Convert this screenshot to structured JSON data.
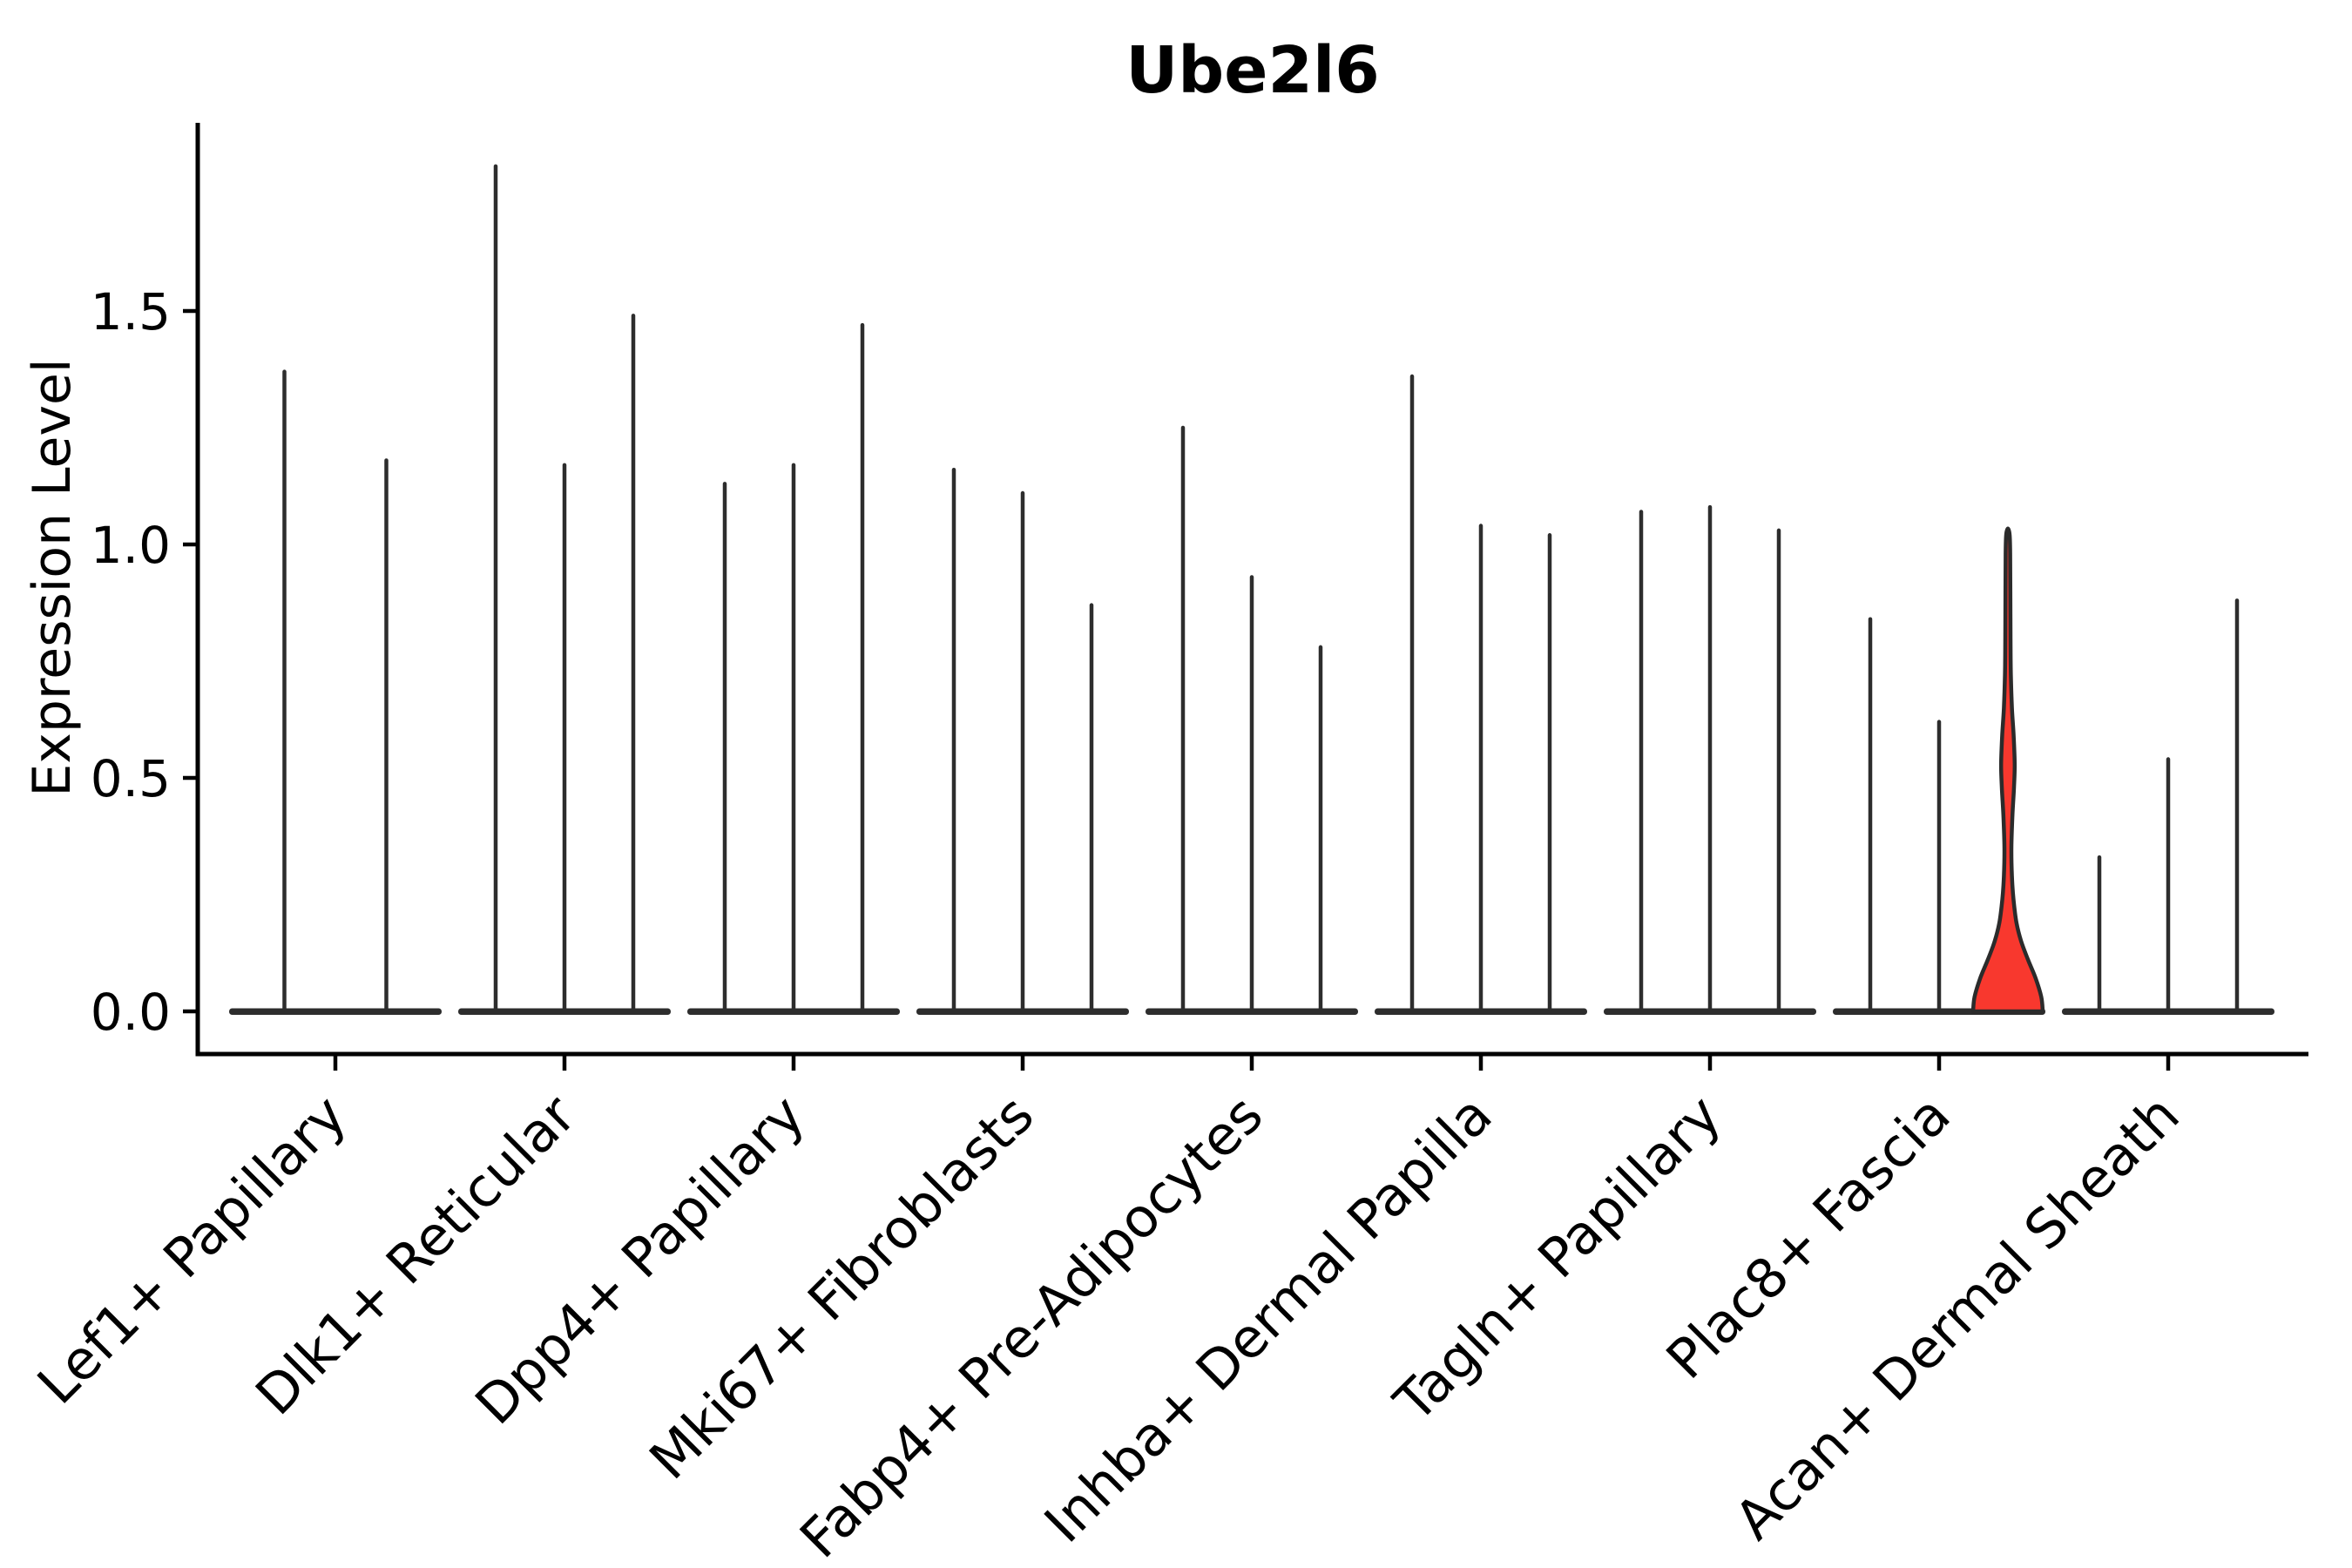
{
  "chart_data": {
    "type": "violin",
    "title": "Ube2l6",
    "ylabel": "Expression Level",
    "xlabel": "",
    "yticks": [
      0.0,
      0.5,
      1.0,
      1.5
    ],
    "ytick_labels": [
      "0.0",
      "0.5",
      "1.0",
      "1.5"
    ],
    "ylim": [
      -0.09,
      1.9
    ],
    "grid": false,
    "legend": "none",
    "x_tick_rotation_deg": 45,
    "categories": [
      "Lef1+ Papillary",
      "Dlk1+ Reticular",
      "Dpp4+ Papillary",
      "Mki67+ Fibroblasts",
      "Fabp4+ Pre-Adipocytes",
      "Inhba+ Dermal Papilla",
      "Tagln+ Papillary",
      "Plac8+ Fascia",
      "Acan+ Dermal Sheath"
    ],
    "groups": [
      {
        "label": "Lef1+ Papillary",
        "violins": [
          {
            "max": 1.37
          },
          {
            "max": 1.18
          }
        ]
      },
      {
        "label": "Dlk1+ Reticular",
        "violins": [
          {
            "max": 1.81
          },
          {
            "max": 1.17
          },
          {
            "max": 1.49
          }
        ]
      },
      {
        "label": "Dpp4+ Papillary",
        "violins": [
          {
            "max": 1.13
          },
          {
            "max": 1.17
          },
          {
            "max": 1.47
          }
        ]
      },
      {
        "label": "Mki67+ Fibroblasts",
        "violins": [
          {
            "max": 1.16
          },
          {
            "max": 1.11
          },
          {
            "max": 0.87
          }
        ]
      },
      {
        "label": "Fabp4+ Pre-Adipocytes",
        "violins": [
          {
            "max": 1.25
          },
          {
            "max": 0.93
          },
          {
            "max": 0.78
          }
        ]
      },
      {
        "label": "Inhba+ Dermal Papilla",
        "violins": [
          {
            "max": 1.36
          },
          {
            "max": 1.04
          },
          {
            "max": 1.02
          }
        ]
      },
      {
        "label": "Tagln+ Papillary",
        "violins": [
          {
            "max": 1.07
          },
          {
            "max": 1.08
          },
          {
            "max": 1.03
          }
        ]
      },
      {
        "label": "Plac8+ Fascia",
        "violins": [
          {
            "max": 0.84
          },
          {
            "max": 0.62
          },
          {
            "max": 1.03,
            "highlighted": true,
            "profile": [
              [
                0.0,
                1.0
              ],
              [
                0.03,
                0.96
              ],
              [
                0.07,
                0.8
              ],
              [
                0.11,
                0.58
              ],
              [
                0.15,
                0.38
              ],
              [
                0.19,
                0.245
              ],
              [
                0.24,
                0.16
              ],
              [
                0.29,
                0.115
              ],
              [
                0.35,
                0.1
              ],
              [
                0.42,
                0.13
              ],
              [
                0.48,
                0.175
              ],
              [
                0.53,
                0.195
              ],
              [
                0.59,
                0.165
              ],
              [
                0.65,
                0.115
              ],
              [
                0.72,
                0.085
              ],
              [
                0.8,
                0.075
              ],
              [
                0.9,
                0.07
              ],
              [
                0.98,
                0.065
              ],
              [
                1.02,
                0.05
              ],
              [
                1.034,
                0.0
              ]
            ]
          }
        ]
      },
      {
        "label": "Acan+ Dermal Sheath",
        "violins": [
          {
            "max": 0.33
          },
          {
            "max": 0.54
          },
          {
            "max": 0.88
          }
        ]
      }
    ],
    "colors": {
      "violin_line": "#2d2d2d",
      "highlight_fill": "#f8382e",
      "highlight_edge": "#2b2b2b",
      "axis": "#000000",
      "text": "#000000",
      "background": "#ffffff"
    }
  }
}
